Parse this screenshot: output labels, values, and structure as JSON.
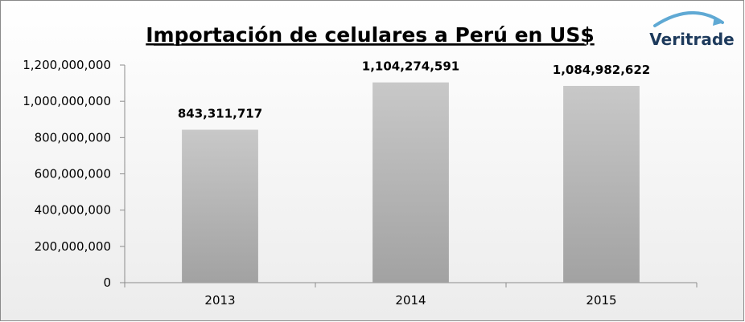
{
  "chart_data": {
    "type": "bar",
    "title": "Importación de celulares a Perú en US$",
    "categories": [
      "2013",
      "2014",
      "2015"
    ],
    "values": [
      843311717,
      1104274591,
      1084982622
    ],
    "data_labels": [
      "843,311,717",
      "1,104,274,591",
      "1,084,982,622"
    ],
    "ylim": [
      0,
      1200000000
    ],
    "yticks": [
      0,
      200000000,
      400000000,
      600000000,
      800000000,
      1000000000,
      1200000000
    ],
    "ytick_labels": [
      "0",
      "200,000,000",
      "400,000,000",
      "600,000,000",
      "800,000,000",
      "1,000,000,000",
      "1,200,000,000"
    ],
    "grid": false,
    "legend": "none",
    "bar_color": "#b4b4b4"
  },
  "logo": {
    "text": "Veritrade",
    "color": "#1d3a5c"
  }
}
